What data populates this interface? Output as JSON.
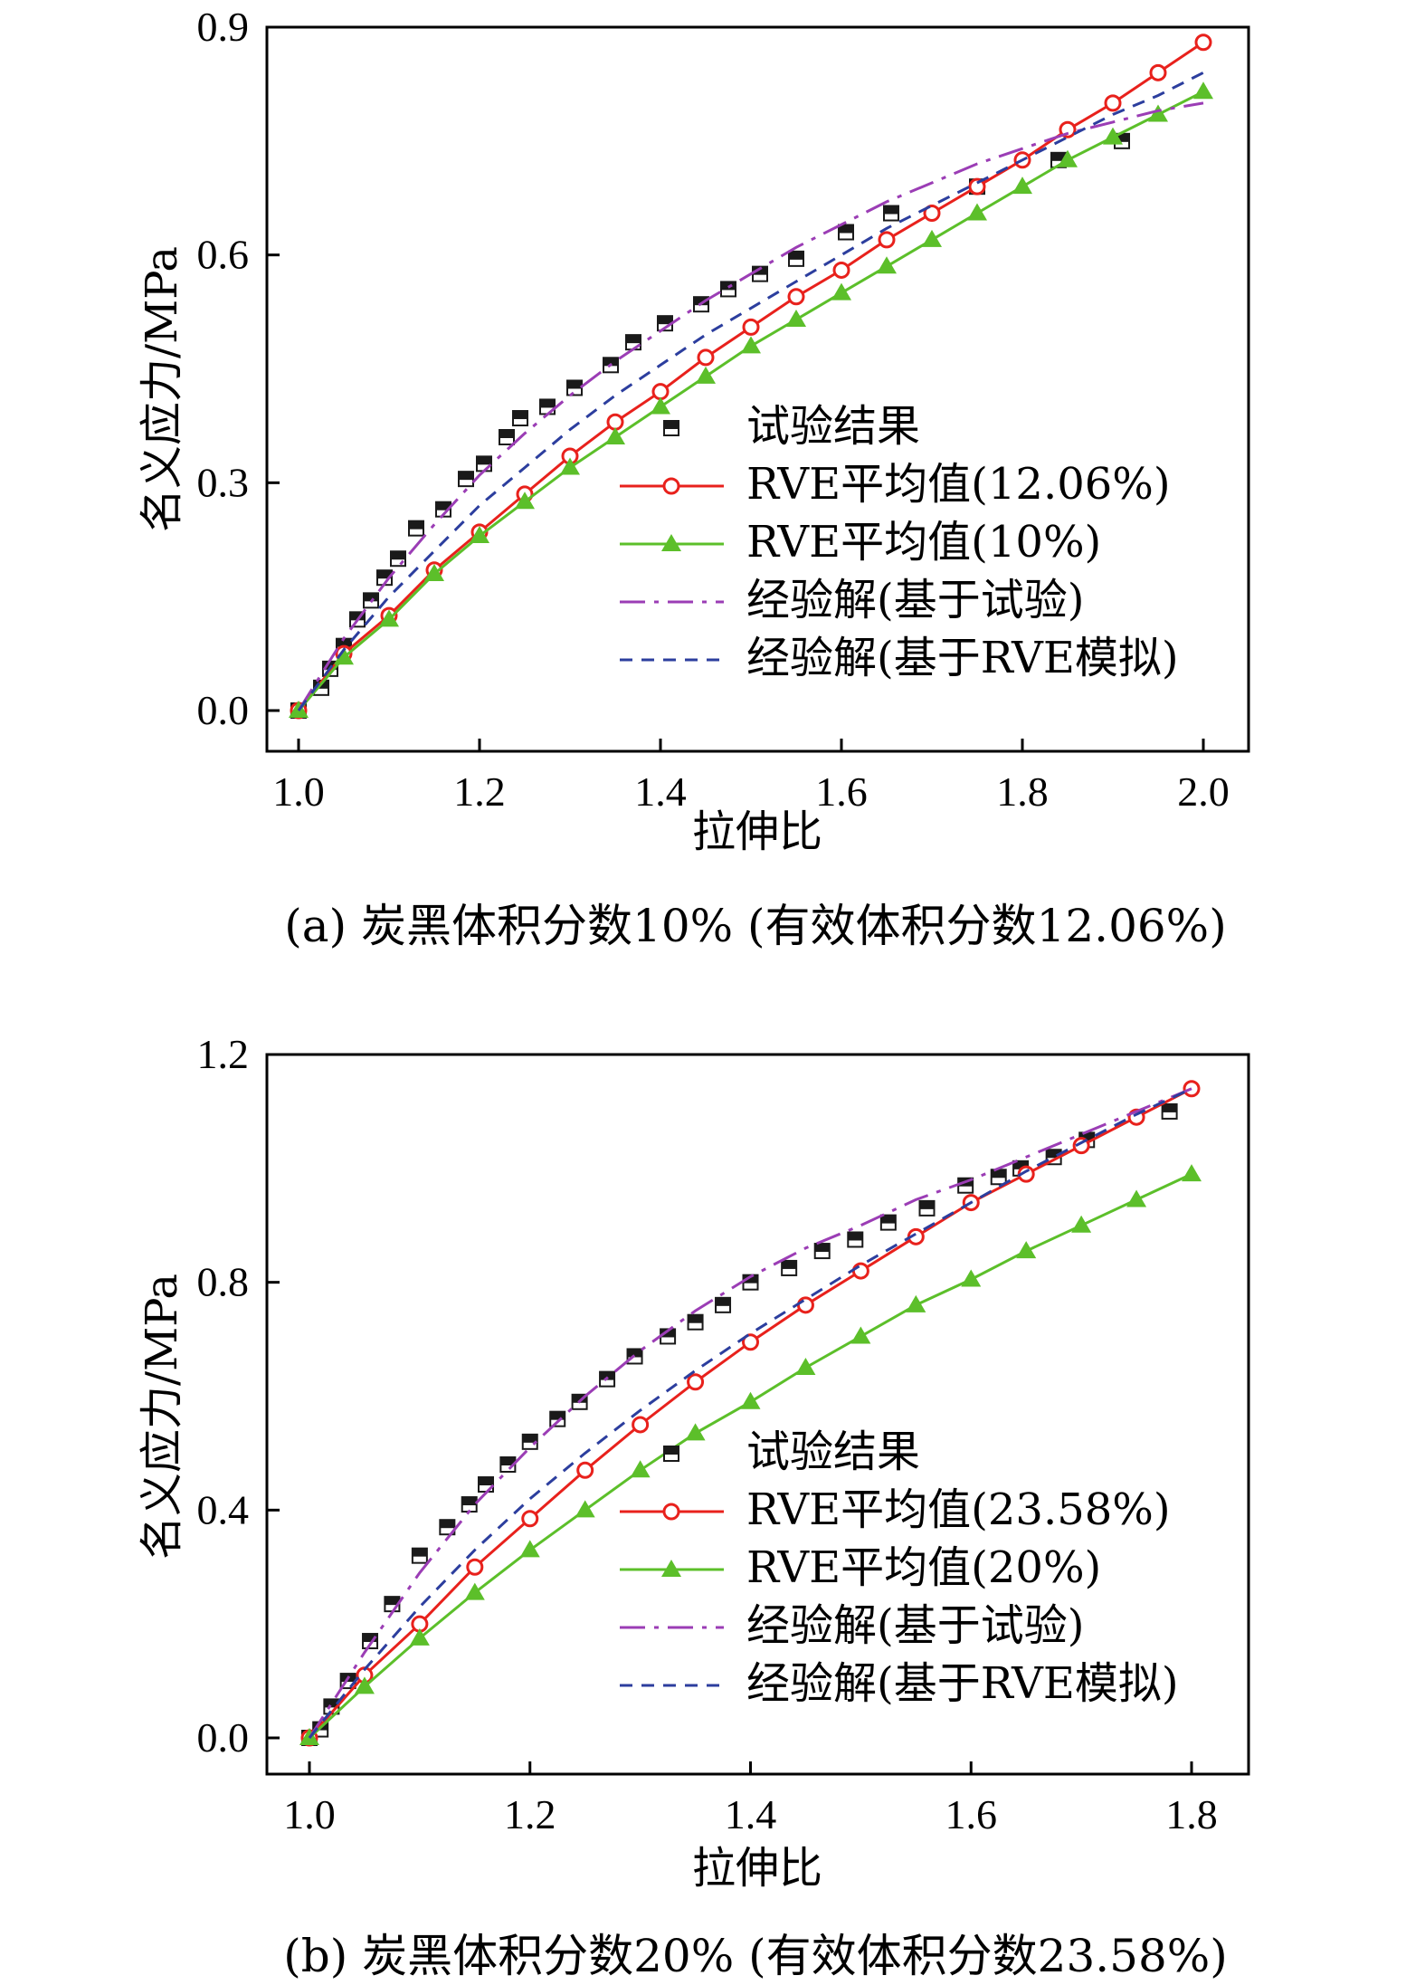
{
  "chart_data": [
    {
      "type": "line",
      "panel": "a",
      "caption": "(a) 炭黑体积分数10% (有效体积分数12.06%)",
      "xlabel": "拉伸比",
      "ylabel": "名义应力/MPa",
      "xlim": [
        1.0,
        2.0
      ],
      "ylim": [
        0.0,
        0.9
      ],
      "xticks": [
        "1.0",
        "1.2",
        "1.4",
        "1.6",
        "1.8",
        "2.0"
      ],
      "yticks": [
        "0.0",
        "0.3",
        "0.6",
        "0.9"
      ],
      "legend_position": "lower-right",
      "series": [
        {
          "name": "试验结果",
          "style": "square-markers",
          "color": "#1a1a1a",
          "x": [
            1.0,
            1.025,
            1.035,
            1.05,
            1.065,
            1.08,
            1.095,
            1.11,
            1.13,
            1.16,
            1.185,
            1.205,
            1.23,
            1.245,
            1.275,
            1.305,
            1.345,
            1.37,
            1.405,
            1.445,
            1.475,
            1.51,
            1.55,
            1.605,
            1.655,
            1.75,
            1.84,
            1.91
          ],
          "y": [
            0.0,
            0.03,
            0.055,
            0.085,
            0.12,
            0.145,
            0.175,
            0.2,
            0.24,
            0.265,
            0.305,
            0.325,
            0.36,
            0.385,
            0.4,
            0.425,
            0.455,
            0.485,
            0.51,
            0.535,
            0.555,
            0.575,
            0.595,
            0.63,
            0.655,
            0.69,
            0.725,
            0.75
          ]
        },
        {
          "name": "RVE平均值(12.06%)",
          "style": "line-circle",
          "color": "#e8211c",
          "x": [
            1.0,
            1.05,
            1.1,
            1.15,
            1.2,
            1.25,
            1.3,
            1.35,
            1.4,
            1.45,
            1.5,
            1.55,
            1.6,
            1.65,
            1.7,
            1.75,
            1.8,
            1.85,
            1.9,
            1.95,
            2.0
          ],
          "y": [
            0.0,
            0.075,
            0.125,
            0.185,
            0.235,
            0.285,
            0.335,
            0.38,
            0.42,
            0.465,
            0.505,
            0.545,
            0.58,
            0.62,
            0.655,
            0.69,
            0.725,
            0.765,
            0.8,
            0.84,
            0.88
          ]
        },
        {
          "name": "RVE平均值(10%)",
          "style": "line-triangle",
          "color": "#5cbf2a",
          "x": [
            1.0,
            1.05,
            1.1,
            1.15,
            1.2,
            1.25,
            1.3,
            1.35,
            1.4,
            1.45,
            1.5,
            1.55,
            1.6,
            1.65,
            1.7,
            1.75,
            1.8,
            1.85,
            1.9,
            1.95,
            2.0
          ],
          "y": [
            0.0,
            0.07,
            0.12,
            0.18,
            0.23,
            0.275,
            0.32,
            0.36,
            0.4,
            0.44,
            0.48,
            0.515,
            0.55,
            0.585,
            0.62,
            0.655,
            0.69,
            0.725,
            0.755,
            0.785,
            0.815
          ]
        },
        {
          "name": "经验解(基于试验)",
          "style": "dash-dot",
          "color": "#9b3db5",
          "x": [
            1.0,
            1.05,
            1.1,
            1.15,
            1.2,
            1.25,
            1.3,
            1.35,
            1.4,
            1.45,
            1.5,
            1.55,
            1.6,
            1.65,
            1.7,
            1.75,
            1.8,
            1.85,
            1.9,
            1.95,
            2.0
          ],
          "y": [
            0.0,
            0.095,
            0.175,
            0.245,
            0.31,
            0.365,
            0.415,
            0.46,
            0.5,
            0.54,
            0.575,
            0.61,
            0.64,
            0.67,
            0.695,
            0.72,
            0.74,
            0.76,
            0.775,
            0.79,
            0.8
          ]
        },
        {
          "name": "经验解(基于RVE模拟)",
          "style": "dash",
          "color": "#2c3e9e",
          "x": [
            1.0,
            1.05,
            1.1,
            1.15,
            1.2,
            1.25,
            1.3,
            1.35,
            1.4,
            1.45,
            1.5,
            1.55,
            1.6,
            1.65,
            1.7,
            1.75,
            1.8,
            1.85,
            1.9,
            1.95,
            2.0
          ],
          "y": [
            0.0,
            0.08,
            0.15,
            0.21,
            0.27,
            0.32,
            0.37,
            0.415,
            0.455,
            0.495,
            0.53,
            0.565,
            0.6,
            0.635,
            0.665,
            0.695,
            0.725,
            0.755,
            0.785,
            0.81,
            0.84
          ]
        }
      ]
    },
    {
      "type": "line",
      "panel": "b",
      "caption": "(b) 炭黑体积分数20% (有效体积分数23.58%)",
      "xlabel": "拉伸比",
      "ylabel": "名义应力/MPa",
      "xlim": [
        1.0,
        1.8
      ],
      "ylim": [
        0.0,
        1.2
      ],
      "xticks": [
        "1.0",
        "1.2",
        "1.4",
        "1.6",
        "1.8"
      ],
      "yticks": [
        "0.0",
        "0.4",
        "0.8",
        "1.2"
      ],
      "legend_position": "lower-right",
      "series": [
        {
          "name": "试验结果",
          "style": "square-markers",
          "color": "#1a1a1a",
          "x": [
            1.0,
            1.01,
            1.02,
            1.035,
            1.055,
            1.075,
            1.1,
            1.125,
            1.145,
            1.16,
            1.18,
            1.2,
            1.225,
            1.245,
            1.27,
            1.295,
            1.325,
            1.35,
            1.375,
            1.4,
            1.435,
            1.465,
            1.495,
            1.525,
            1.56,
            1.595,
            1.625,
            1.645,
            1.675,
            1.705,
            1.78
          ],
          "y": [
            0.0,
            0.015,
            0.055,
            0.1,
            0.17,
            0.235,
            0.32,
            0.37,
            0.41,
            0.445,
            0.48,
            0.52,
            0.56,
            0.59,
            0.63,
            0.67,
            0.705,
            0.73,
            0.76,
            0.8,
            0.825,
            0.855,
            0.875,
            0.905,
            0.93,
            0.97,
            0.985,
            1.0,
            1.02,
            1.05,
            1.1
          ]
        },
        {
          "name": "RVE平均值(23.58%)",
          "style": "line-circle",
          "color": "#e8211c",
          "x": [
            1.0,
            1.05,
            1.1,
            1.15,
            1.2,
            1.25,
            1.3,
            1.35,
            1.4,
            1.45,
            1.5,
            1.55,
            1.6,
            1.65,
            1.7,
            1.75,
            1.8
          ],
          "y": [
            0.0,
            0.11,
            0.2,
            0.3,
            0.385,
            0.47,
            0.55,
            0.625,
            0.695,
            0.76,
            0.82,
            0.88,
            0.94,
            0.99,
            1.04,
            1.09,
            1.14
          ]
        },
        {
          "name": "RVE平均值(20%)",
          "style": "line-triangle",
          "color": "#5cbf2a",
          "x": [
            1.0,
            1.05,
            1.1,
            1.15,
            1.2,
            1.25,
            1.3,
            1.35,
            1.4,
            1.45,
            1.5,
            1.55,
            1.6,
            1.65,
            1.7,
            1.75,
            1.8
          ],
          "y": [
            0.0,
            0.09,
            0.175,
            0.255,
            0.33,
            0.4,
            0.47,
            0.535,
            0.59,
            0.65,
            0.705,
            0.76,
            0.805,
            0.855,
            0.9,
            0.945,
            0.99
          ]
        },
        {
          "name": "经验解(基于试验)",
          "style": "dash-dot",
          "color": "#9b3db5",
          "x": [
            1.0,
            1.05,
            1.1,
            1.15,
            1.2,
            1.25,
            1.3,
            1.35,
            1.4,
            1.45,
            1.5,
            1.55,
            1.6,
            1.65,
            1.7,
            1.75,
            1.8
          ],
          "y": [
            0.0,
            0.15,
            0.29,
            0.41,
            0.51,
            0.6,
            0.68,
            0.75,
            0.81,
            0.86,
            0.9,
            0.945,
            0.98,
            1.02,
            1.06,
            1.1,
            1.14
          ]
        },
        {
          "name": "经验解(基于RVE模拟)",
          "style": "dash",
          "color": "#2c3e9e",
          "x": [
            1.0,
            1.05,
            1.1,
            1.15,
            1.2,
            1.25,
            1.3,
            1.35,
            1.4,
            1.45,
            1.5,
            1.55,
            1.6,
            1.65,
            1.7,
            1.75,
            1.8
          ],
          "y": [
            0.0,
            0.12,
            0.23,
            0.33,
            0.42,
            0.5,
            0.575,
            0.645,
            0.71,
            0.77,
            0.83,
            0.885,
            0.94,
            0.995,
            1.045,
            1.095,
            1.14
          ]
        }
      ]
    }
  ]
}
